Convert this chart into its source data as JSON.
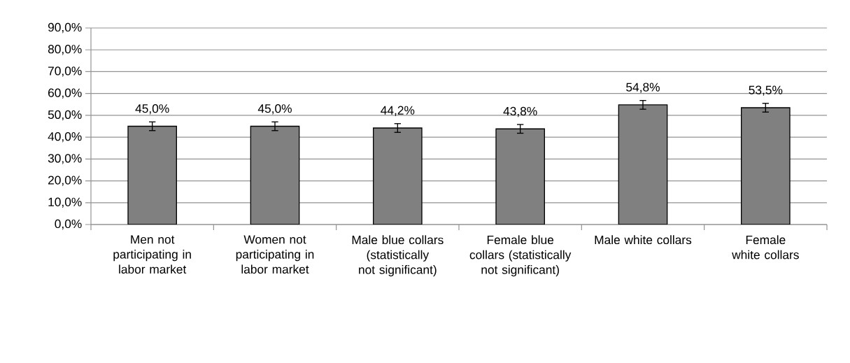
{
  "chart_data": {
    "type": "bar",
    "categories": [
      "Men not participating in labor market",
      "Women not participating in labor market",
      "Male blue collars (statistically not significant)",
      "Female blue collars (statistically not significant)",
      "Male white collars",
      "Female white collars"
    ],
    "values": [
      45.0,
      45.0,
      44.2,
      43.8,
      54.8,
      53.5
    ],
    "value_labels": [
      "45,0%",
      "45,0%",
      "44,2%",
      "43,8%",
      "54,8%",
      "53,5%"
    ],
    "errors": [
      2,
      2,
      2,
      2,
      2,
      2
    ],
    "color": "#808080",
    "ylim": [
      0,
      90
    ],
    "yticks": [
      {
        "value": 0,
        "label": "0,0%"
      },
      {
        "value": 10,
        "label": "10,0%"
      },
      {
        "value": 20,
        "label": "20,0%"
      },
      {
        "value": 30,
        "label": "30,0%"
      },
      {
        "value": 40,
        "label": "40,0%"
      },
      {
        "value": 50,
        "label": "50,0%"
      },
      {
        "value": 60,
        "label": "60,0%"
      },
      {
        "value": 70,
        "label": "70,0%"
      },
      {
        "value": 80,
        "label": "80,0%"
      },
      {
        "value": 90,
        "label": "90,0%"
      }
    ],
    "grid": "y"
  }
}
